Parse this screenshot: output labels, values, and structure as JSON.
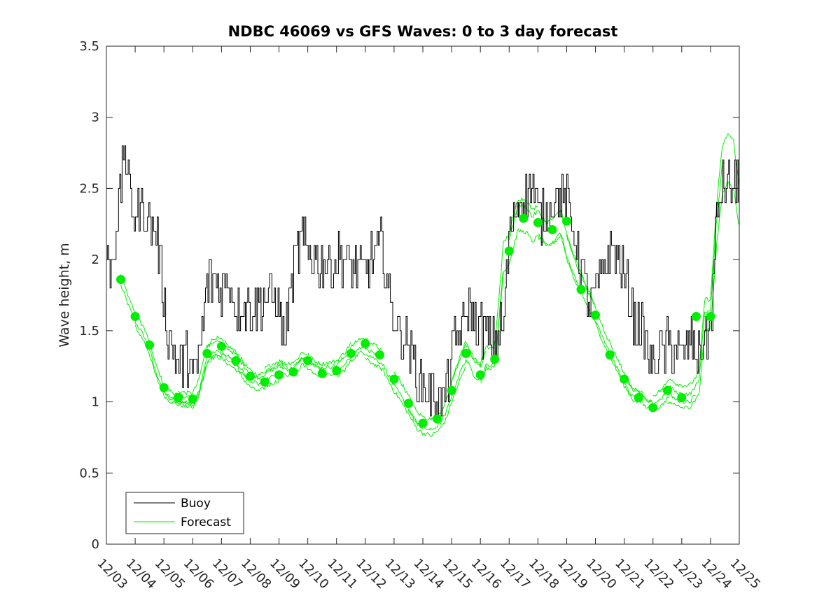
{
  "chart_data": {
    "type": "line",
    "title": "NDBC 46069 vs GFS Waves: 0 to 3 day forecast",
    "xlabel": "",
    "ylabel": "Wave height, m",
    "xlim": [
      0,
      22
    ],
    "ylim": [
      0,
      3.5
    ],
    "x_ticks": [
      0,
      1,
      2,
      3,
      4,
      5,
      6,
      7,
      8,
      9,
      10,
      11,
      12,
      13,
      14,
      15,
      16,
      17,
      18,
      19,
      20,
      21,
      22
    ],
    "x_tick_labels": [
      "12/03",
      "12/04",
      "12/05",
      "12/06",
      "12/07",
      "12/08",
      "12/09",
      "12/10",
      "12/11",
      "12/12",
      "12/13",
      "12/14",
      "12/15",
      "12/16",
      "12/17",
      "12/18",
      "12/19",
      "12/20",
      "12/21",
      "12/22",
      "12/23",
      "12/24",
      "12/25"
    ],
    "y_ticks": [
      0,
      0.5,
      1,
      1.5,
      2,
      2.5,
      3,
      3.5
    ],
    "y_tick_labels": [
      "0",
      "0.5",
      "1",
      "1.5",
      "2",
      "2.5",
      "3",
      "3.5"
    ],
    "grid": false,
    "legend": {
      "position": "bottom-left",
      "entries": [
        {
          "label": "Buoy",
          "color": "#000000"
        },
        {
          "label": "Forecast",
          "color": "#00ee00"
        }
      ]
    },
    "colors": {
      "buoy": "#000000",
      "forecast": "#00ee00",
      "marker": "#00ee00"
    },
    "buoy_anchors": {
      "x": [
        0,
        0.1,
        0.2,
        0.35,
        0.5,
        0.6,
        0.8,
        1.0,
        1.3,
        1.6,
        1.8,
        2.0,
        2.1,
        2.3,
        2.5,
        2.7,
        2.9,
        3.0,
        3.1,
        3.3,
        3.5,
        3.7,
        4.0,
        4.3,
        4.5,
        4.7,
        5.0,
        5.3,
        5.6,
        5.8,
        6.0,
        6.2,
        6.5,
        6.8,
        7.0,
        7.3,
        7.6,
        8.0,
        8.3,
        8.6,
        9.0,
        9.3,
        9.6,
        9.8,
        10.0,
        10.2,
        10.5,
        10.8,
        11.0,
        11.2,
        11.5,
        11.7,
        12.0,
        12.2,
        12.4,
        12.6,
        12.8,
        13.0,
        13.2,
        13.5,
        13.8,
        14.0,
        14.3,
        14.6,
        14.8,
        15.0,
        15.3,
        15.6,
        16.0,
        16.3,
        16.6,
        16.8,
        17.0,
        17.3,
        17.6,
        17.8,
        18.0,
        18.3,
        18.6,
        18.8,
        19.0,
        19.3,
        19.6,
        19.8,
        20.0,
        20.3,
        20.6,
        20.8,
        21.0,
        21.2,
        21.4,
        21.6,
        22.0
      ],
      "y": [
        2.05,
        1.95,
        2.0,
        2.25,
        2.5,
        2.85,
        2.45,
        2.3,
        2.35,
        2.25,
        2.1,
        1.75,
        1.5,
        1.4,
        1.25,
        1.3,
        1.3,
        1.15,
        1.2,
        1.45,
        1.85,
        1.85,
        1.8,
        1.85,
        1.65,
        1.7,
        1.65,
        1.7,
        1.75,
        1.75,
        1.65,
        1.45,
        1.95,
        2.15,
        2.05,
        2.0,
        1.95,
        2.0,
        2.0,
        1.95,
        1.95,
        2.05,
        2.1,
        1.75,
        1.6,
        1.45,
        1.4,
        1.2,
        1.1,
        1.05,
        1.05,
        1.0,
        1.3,
        1.5,
        1.5,
        1.7,
        1.55,
        1.5,
        1.45,
        1.4,
        1.55,
        2.15,
        2.4,
        2.45,
        2.55,
        2.3,
        2.3,
        2.45,
        2.4,
        2.15,
        1.85,
        1.7,
        1.75,
        1.95,
        2.1,
        2.0,
        1.9,
        1.6,
        1.5,
        1.35,
        1.25,
        1.35,
        1.4,
        1.35,
        1.3,
        1.4,
        1.35,
        1.45,
        1.55,
        2.25,
        2.55,
        2.5,
        2.55
      ]
    },
    "forecast_anchors": {
      "x": [
        0.5,
        0.8,
        1.0,
        1.3,
        1.5,
        1.7,
        2.0,
        2.2,
        2.5,
        2.8,
        3.0,
        3.2,
        3.5,
        3.8,
        4.0,
        4.3,
        4.5,
        4.8,
        5.0,
        5.3,
        5.6,
        6.0,
        6.3,
        6.6,
        6.8,
        7.0,
        7.3,
        7.5,
        7.8,
        8.0,
        8.3,
        8.5,
        8.8,
        9.0,
        9.3,
        9.6,
        10.0,
        10.2,
        10.5,
        10.8,
        11.0,
        11.3,
        11.6,
        11.8,
        12.0,
        12.3,
        12.5,
        12.8,
        13.0,
        13.2,
        13.5,
        13.8,
        14.0,
        14.3,
        14.6,
        14.8,
        15.0,
        15.3,
        15.6,
        15.8,
        16.0,
        16.3,
        16.6,
        16.8,
        17.0,
        17.3,
        17.6,
        17.8,
        18.0,
        18.3,
        18.6,
        18.8,
        19.0,
        19.3,
        19.6,
        19.8,
        20.0,
        20.3,
        20.6,
        20.8,
        21.0,
        21.2,
        21.4,
        21.6,
        21.8,
        22.0
      ],
      "y": [
        1.86,
        1.7,
        1.6,
        1.5,
        1.4,
        1.25,
        1.1,
        1.06,
        1.03,
        1.02,
        1.02,
        1.1,
        1.35,
        1.4,
        1.38,
        1.33,
        1.3,
        1.22,
        1.17,
        1.14,
        1.18,
        1.22,
        1.2,
        1.22,
        1.28,
        1.26,
        1.21,
        1.2,
        1.21,
        1.22,
        1.28,
        1.34,
        1.4,
        1.4,
        1.36,
        1.32,
        1.16,
        1.1,
        0.99,
        0.88,
        0.85,
        0.83,
        0.88,
        0.95,
        1.08,
        1.25,
        1.34,
        1.22,
        1.19,
        1.3,
        1.3,
        2.0,
        2.06,
        2.3,
        2.29,
        2.22,
        2.26,
        2.18,
        2.22,
        2.27,
        2.1,
        1.93,
        1.79,
        1.7,
        1.61,
        1.46,
        1.33,
        1.25,
        1.16,
        1.06,
        1.03,
        0.98,
        0.96,
        1.0,
        1.08,
        1.04,
        1.03,
        1.03,
        1.12,
        1.6,
        1.6,
        2.2,
        2.6,
        2.7,
        2.65,
        2.35
      ]
    },
    "forecast_markers": {
      "x": [
        0.5,
        1.0,
        1.5,
        2.0,
        2.5,
        3.0,
        3.5,
        4.0,
        4.5,
        5.0,
        5.5,
        6.0,
        6.5,
        7.0,
        7.5,
        8.0,
        8.5,
        9.0,
        9.5,
        10.0,
        10.5,
        11.0,
        11.5,
        12.0,
        12.5,
        13.0,
        13.5,
        14.0,
        14.5,
        15.0,
        15.5,
        16.0,
        16.5,
        17.0,
        17.5,
        18.0,
        18.5,
        19.0,
        19.5,
        20.0,
        20.5,
        21.0
      ],
      "y": [
        1.86,
        1.6,
        1.4,
        1.1,
        1.03,
        1.02,
        1.34,
        1.39,
        1.29,
        1.18,
        1.14,
        1.19,
        1.21,
        1.29,
        1.2,
        1.22,
        1.34,
        1.41,
        1.33,
        1.16,
        0.99,
        0.85,
        0.88,
        1.08,
        1.34,
        1.19,
        1.3,
        2.06,
        2.29,
        2.26,
        2.21,
        2.27,
        1.79,
        1.61,
        1.33,
        1.16,
        1.03,
        0.96,
        1.08,
        1.03,
        1.6,
        1.6
      ]
    }
  }
}
